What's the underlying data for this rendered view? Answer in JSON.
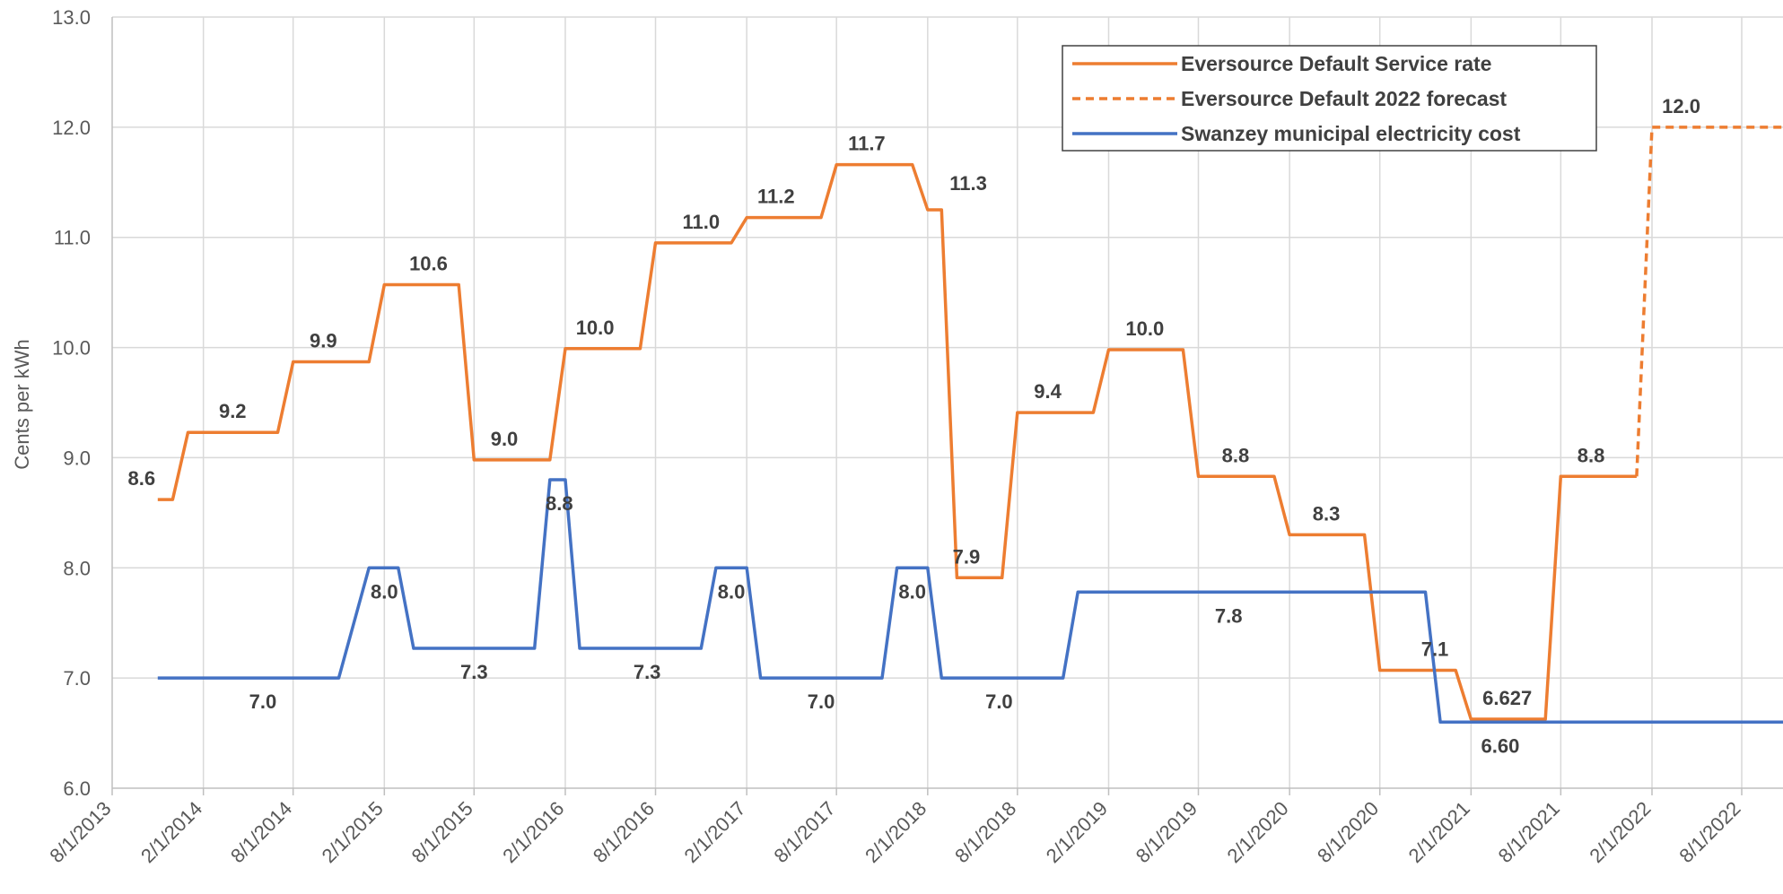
{
  "chart_data": {
    "type": "line",
    "title": "",
    "xlabel": "",
    "ylabel": "Cents per kWh",
    "ylim": [
      6.0,
      13.0
    ],
    "yticks": [
      "6.0",
      "7.0",
      "8.0",
      "9.0",
      "10.0",
      "11.0",
      "12.0",
      "13.0"
    ],
    "xlim": [
      "2013-08-01",
      "2023-01-01"
    ],
    "xticks": [
      {
        "date": "2013-08-01",
        "label": "8/1/2013"
      },
      {
        "date": "2014-02-01",
        "label": "2/1/2014"
      },
      {
        "date": "2014-08-01",
        "label": "8/1/2014"
      },
      {
        "date": "2015-02-01",
        "label": "2/1/2015"
      },
      {
        "date": "2015-08-01",
        "label": "8/1/2015"
      },
      {
        "date": "2016-02-01",
        "label": "2/1/2016"
      },
      {
        "date": "2016-08-01",
        "label": "8/1/2016"
      },
      {
        "date": "2017-02-01",
        "label": "2/1/2017"
      },
      {
        "date": "2017-08-01",
        "label": "8/1/2017"
      },
      {
        "date": "2018-02-01",
        "label": "2/1/2018"
      },
      {
        "date": "2018-08-01",
        "label": "8/1/2018"
      },
      {
        "date": "2019-02-01",
        "label": "2/1/2019"
      },
      {
        "date": "2019-08-01",
        "label": "8/1/2019"
      },
      {
        "date": "2020-02-01",
        "label": "2/1/2020"
      },
      {
        "date": "2020-08-01",
        "label": "8/1/2020"
      },
      {
        "date": "2021-02-01",
        "label": "2/1/2021"
      },
      {
        "date": "2021-08-01",
        "label": "8/1/2021"
      },
      {
        "date": "2022-02-01",
        "label": "2/1/2022"
      },
      {
        "date": "2022-08-01",
        "label": "8/1/2022"
      }
    ],
    "grid": true,
    "legend_position": "top-right",
    "series": [
      {
        "name": "Eversource Default Service rate",
        "color": "#ED7D31",
        "dash": "solid",
        "points": [
          [
            "2013-11-01",
            8.62
          ],
          [
            "2013-12-01",
            8.62
          ],
          [
            "2014-01-01",
            9.23
          ],
          [
            "2014-07-01",
            9.23
          ],
          [
            "2014-08-01",
            9.87
          ],
          [
            "2015-01-01",
            9.87
          ],
          [
            "2015-02-01",
            10.57
          ],
          [
            "2015-07-01",
            10.57
          ],
          [
            "2015-08-01",
            8.98
          ],
          [
            "2016-01-01",
            8.98
          ],
          [
            "2016-02-01",
            9.99
          ],
          [
            "2016-07-01",
            9.99
          ],
          [
            "2016-08-01",
            10.95
          ],
          [
            "2017-01-01",
            10.95
          ],
          [
            "2017-02-01",
            11.18
          ],
          [
            "2017-07-01",
            11.18
          ],
          [
            "2017-08-01",
            11.66
          ],
          [
            "2018-01-01",
            11.66
          ],
          [
            "2018-02-01",
            11.25
          ],
          [
            "2018-03-01",
            11.25
          ],
          [
            "2018-04-01",
            7.91
          ],
          [
            "2018-07-01",
            7.91
          ],
          [
            "2018-08-01",
            9.41
          ],
          [
            "2019-01-01",
            9.41
          ],
          [
            "2019-02-01",
            9.98
          ],
          [
            "2019-07-01",
            9.98
          ],
          [
            "2019-08-01",
            8.83
          ],
          [
            "2020-01-01",
            8.83
          ],
          [
            "2020-02-01",
            8.3
          ],
          [
            "2020-07-01",
            8.3
          ],
          [
            "2020-08-01",
            7.07
          ],
          [
            "2021-01-01",
            7.07
          ],
          [
            "2021-02-01",
            6.627
          ],
          [
            "2021-07-01",
            6.627
          ],
          [
            "2021-08-01",
            8.83
          ],
          [
            "2022-01-01",
            8.83
          ]
        ]
      },
      {
        "name": "Eversource Default 2022 forecast",
        "color": "#ED7D31",
        "dash": "dashed",
        "points": [
          [
            "2022-01-01",
            8.83
          ],
          [
            "2022-02-01",
            12.0
          ],
          [
            "2023-01-01",
            12.0
          ]
        ]
      },
      {
        "name": "Swanzey municipal electricity cost",
        "color": "#4472C4",
        "dash": "solid",
        "points": [
          [
            "2013-11-01",
            7.0
          ],
          [
            "2014-11-01",
            7.0
          ],
          [
            "2015-01-01",
            8.0
          ],
          [
            "2015-03-01",
            8.0
          ],
          [
            "2015-04-01",
            7.27
          ],
          [
            "2015-12-01",
            7.27
          ],
          [
            "2016-01-01",
            8.8
          ],
          [
            "2016-02-01",
            8.8
          ],
          [
            "2016-03-01",
            7.27
          ],
          [
            "2016-11-01",
            7.27
          ],
          [
            "2016-12-01",
            8.0
          ],
          [
            "2017-02-01",
            8.0
          ],
          [
            "2017-03-01",
            7.0
          ],
          [
            "2017-11-01",
            7.0
          ],
          [
            "2017-12-01",
            8.0
          ],
          [
            "2018-02-01",
            8.0
          ],
          [
            "2018-03-01",
            7.0
          ],
          [
            "2018-11-01",
            7.0
          ],
          [
            "2018-12-01",
            7.78
          ],
          [
            "2020-11-01",
            7.78
          ],
          [
            "2020-12-01",
            6.6
          ],
          [
            "2023-01-01",
            6.6
          ]
        ]
      }
    ],
    "data_labels": [
      {
        "series": 0,
        "date": "2013-11-01",
        "value": 8.62,
        "text": "8.6",
        "pos": "above-left"
      },
      {
        "series": 0,
        "date": "2014-04-01",
        "value": 9.23,
        "text": "9.2",
        "pos": "above"
      },
      {
        "series": 0,
        "date": "2014-10-01",
        "value": 9.87,
        "text": "9.9",
        "pos": "above"
      },
      {
        "series": 0,
        "date": "2015-05-01",
        "value": 10.57,
        "text": "10.6",
        "pos": "above"
      },
      {
        "series": 0,
        "date": "2015-10-01",
        "value": 8.98,
        "text": "9.0",
        "pos": "above"
      },
      {
        "series": 0,
        "date": "2016-04-01",
        "value": 9.99,
        "text": "10.0",
        "pos": "above"
      },
      {
        "series": 0,
        "date": "2016-11-01",
        "value": 10.95,
        "text": "11.0",
        "pos": "above"
      },
      {
        "series": 0,
        "date": "2017-04-01",
        "value": 11.18,
        "text": "11.2",
        "pos": "above"
      },
      {
        "series": 0,
        "date": "2017-10-01",
        "value": 11.66,
        "text": "11.7",
        "pos": "above"
      },
      {
        "series": 0,
        "date": "2018-03-15",
        "value": 11.25,
        "text": "11.3",
        "pos": "above-right"
      },
      {
        "series": 0,
        "date": "2018-04-20",
        "value": 7.91,
        "text": "7.9",
        "pos": "above"
      },
      {
        "series": 0,
        "date": "2018-10-01",
        "value": 9.41,
        "text": "9.4",
        "pos": "above"
      },
      {
        "series": 0,
        "date": "2019-04-15",
        "value": 9.98,
        "text": "10.0",
        "pos": "above"
      },
      {
        "series": 0,
        "date": "2019-10-15",
        "value": 8.83,
        "text": "8.8",
        "pos": "above"
      },
      {
        "series": 0,
        "date": "2020-04-15",
        "value": 8.3,
        "text": "8.3",
        "pos": "above"
      },
      {
        "series": 0,
        "date": "2020-11-20",
        "value": 7.07,
        "text": "7.1",
        "pos": "above"
      },
      {
        "series": 0,
        "date": "2021-04-15",
        "value": 6.627,
        "text": "6.627",
        "pos": "above"
      },
      {
        "series": 0,
        "date": "2021-10-01",
        "value": 8.83,
        "text": "8.8",
        "pos": "above"
      },
      {
        "series": 1,
        "date": "2022-04-01",
        "value": 12.0,
        "text": "12.0",
        "pos": "above"
      },
      {
        "series": 2,
        "date": "2014-06-01",
        "value": 7.0,
        "text": "7.0",
        "pos": "below"
      },
      {
        "series": 2,
        "date": "2015-02-01",
        "value": 8.0,
        "text": "8.0",
        "pos": "below"
      },
      {
        "series": 2,
        "date": "2015-08-01",
        "value": 7.27,
        "text": "7.3",
        "pos": "below"
      },
      {
        "series": 2,
        "date": "2016-01-20",
        "value": 8.8,
        "text": "8.8",
        "pos": "below"
      },
      {
        "series": 2,
        "date": "2016-07-15",
        "value": 7.27,
        "text": "7.3",
        "pos": "below"
      },
      {
        "series": 2,
        "date": "2017-01-01",
        "value": 8.0,
        "text": "8.0",
        "pos": "below"
      },
      {
        "series": 2,
        "date": "2017-07-01",
        "value": 7.0,
        "text": "7.0",
        "pos": "below"
      },
      {
        "series": 2,
        "date": "2018-01-01",
        "value": 8.0,
        "text": "8.0",
        "pos": "below"
      },
      {
        "series": 2,
        "date": "2018-06-25",
        "value": 7.0,
        "text": "7.0",
        "pos": "below"
      },
      {
        "series": 2,
        "date": "2019-10-01",
        "value": 7.78,
        "text": "7.8",
        "pos": "below"
      },
      {
        "series": 2,
        "date": "2021-04-01",
        "value": 6.6,
        "text": "6.60",
        "pos": "below"
      }
    ]
  }
}
